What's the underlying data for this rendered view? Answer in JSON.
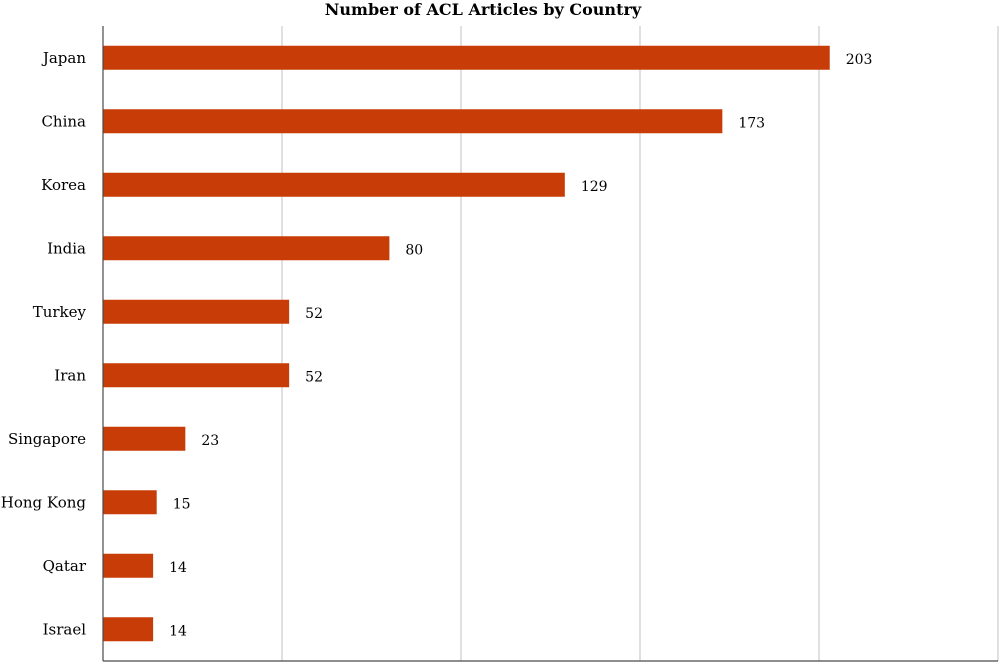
{
  "chart_data": {
    "type": "bar",
    "orientation": "horizontal",
    "title": "Number of ACL Articles by Country",
    "categories": [
      "Japan",
      "China",
      "Korea",
      "India",
      "Turkey",
      "Iran",
      "Singapore",
      "Hong Kong",
      "Qatar",
      "Israel"
    ],
    "values": [
      203,
      173,
      129,
      80,
      52,
      52,
      23,
      15,
      14,
      14
    ],
    "xlim": [
      0,
      250
    ],
    "grid": true,
    "data_labels": true,
    "colors": {
      "bar": "#c83c07",
      "grid": "#cccccc",
      "axis": "#4a4a4a"
    }
  }
}
